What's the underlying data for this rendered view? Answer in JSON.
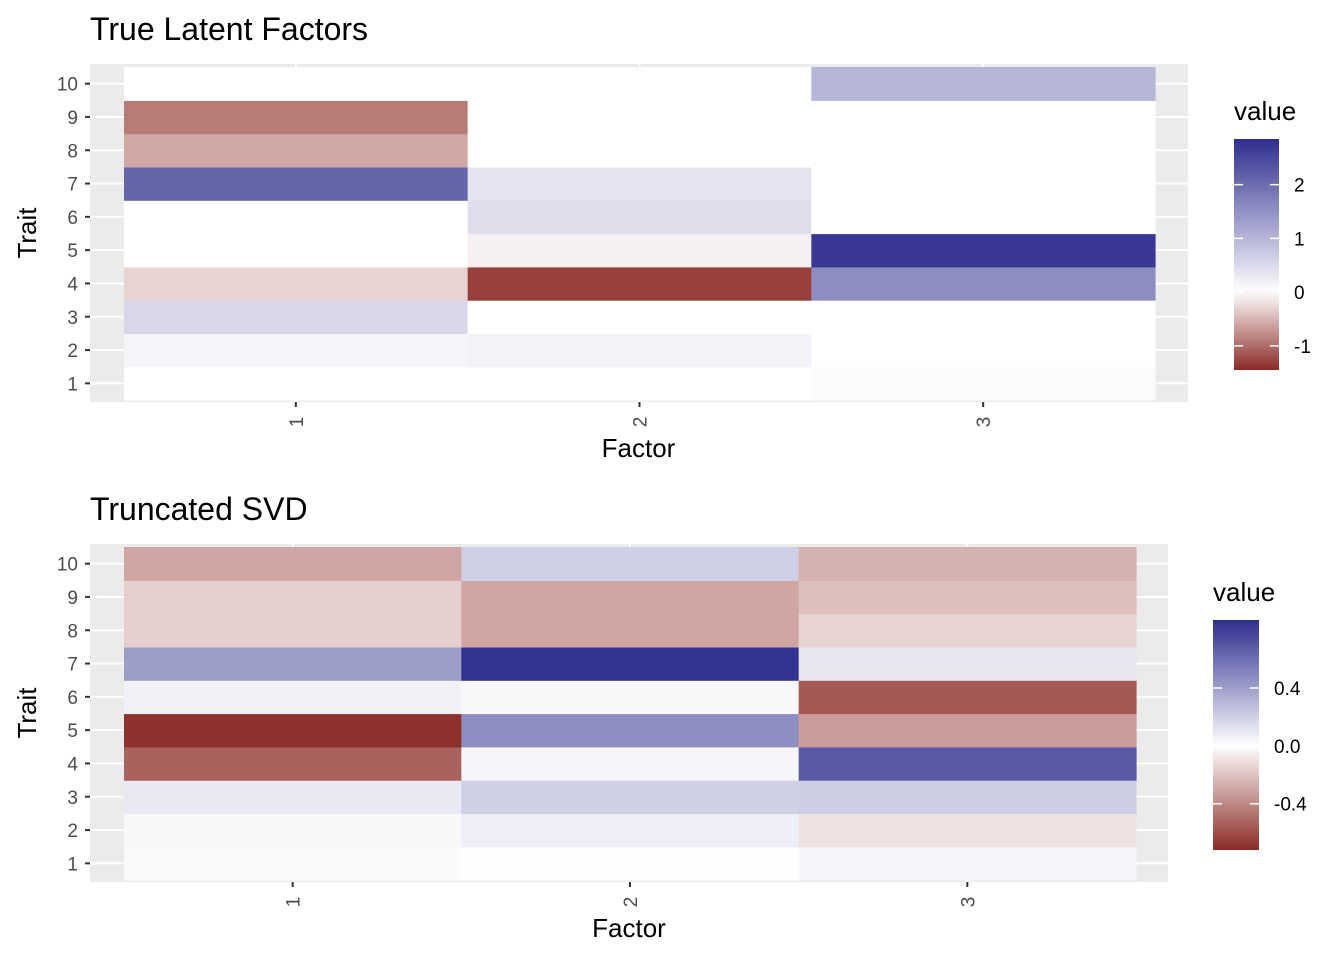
{
  "chart_data": [
    {
      "type": "heatmap",
      "title": "True Latent Factors",
      "xlabel": "Factor",
      "ylabel": "Trait",
      "x_categories": [
        "1",
        "2",
        "3"
      ],
      "y_categories": [
        "1",
        "2",
        "3",
        "4",
        "5",
        "6",
        "7",
        "8",
        "9",
        "10"
      ],
      "values": [
        [
          0.0,
          0.0,
          0.06
        ],
        [
          0.15,
          0.18,
          0.0
        ],
        [
          0.55,
          0.0,
          0.0
        ],
        [
          -0.3,
          -1.3,
          1.55
        ],
        [
          0.0,
          -0.1,
          2.7
        ],
        [
          0.0,
          0.45,
          0.0
        ],
        [
          2.1,
          0.37,
          0.0
        ],
        [
          -0.6,
          0.0,
          0.0
        ],
        [
          -0.9,
          0.0,
          0.0
        ],
        [
          0.0,
          0.0,
          1.0
        ]
      ],
      "legend": {
        "title": "value",
        "ticks": [
          -1,
          0,
          1,
          2
        ],
        "tick_labels": [
          "-1",
          "0",
          "1",
          "2"
        ],
        "limits": [
          -1.45,
          2.85
        ]
      },
      "colors": {
        "low": "#8B2A25",
        "mid": "#FFFFFF",
        "high": "#2E2E8F",
        "panel": "#EBEBEB",
        "grid": "#FFFFFF"
      },
      "flip_x_labels": true
    },
    {
      "type": "heatmap",
      "title": "Truncated SVD",
      "xlabel": "Factor",
      "ylabel": "Trait",
      "x_categories": [
        "1",
        "2",
        "3"
      ],
      "y_categories": [
        "1",
        "2",
        "3",
        "4",
        "5",
        "6",
        "7",
        "8",
        "9",
        "10"
      ],
      "values": [
        [
          -0.02,
          0.01,
          0.04
        ],
        [
          0.03,
          0.07,
          -0.1
        ],
        [
          0.09,
          0.2,
          0.21
        ],
        [
          -0.53,
          0.04,
          0.69
        ],
        [
          -0.7,
          0.47,
          -0.33
        ],
        [
          0.06,
          0.03,
          -0.56
        ],
        [
          0.41,
          0.85,
          0.1
        ],
        [
          -0.16,
          -0.3,
          -0.15
        ],
        [
          -0.16,
          -0.3,
          -0.22
        ],
        [
          -0.3,
          0.2,
          -0.26
        ]
      ],
      "legend": {
        "title": "value",
        "ticks": [
          -0.4,
          0.0,
          0.4
        ],
        "tick_labels": [
          "-0.4",
          "0.0",
          "0.4"
        ],
        "limits": [
          -0.72,
          0.87
        ]
      },
      "colors": {
        "low": "#8B2A25",
        "mid": "#FFFFFF",
        "high": "#2E2E8F",
        "panel": "#EBEBEB",
        "grid": "#FFFFFF"
      },
      "flip_x_labels": true
    }
  ]
}
